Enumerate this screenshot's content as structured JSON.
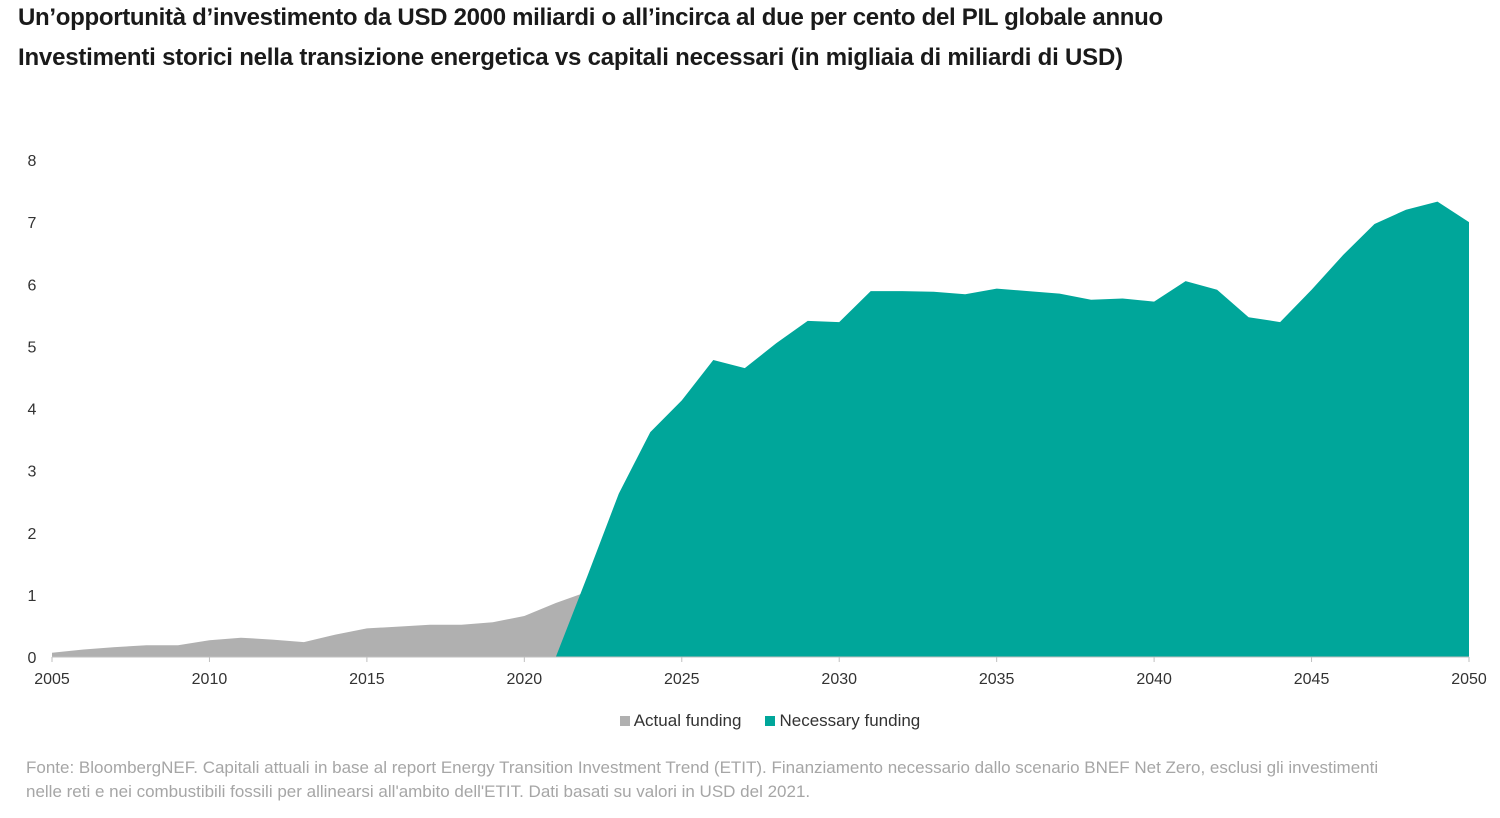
{
  "title": "Un’opportunità d’investimento da USD 2000 miliardi o all’incirca al due per cento del PIL globale annuo",
  "subtitle": "Investimenti storici nella transizione energetica vs capitali necessari (in migliaia di miliardi di USD)",
  "source": "Fonte: BloombergNEF. Capitali attuali in base al report Energy Transition Investment Trend (ETIT). Finanziamento necessario dallo scenario BNEF Net Zero, esclusi gli investimenti nelle reti e nei combustibili fossili per allinearsi all'ambito dell'ETIT. Dati basati su valori in USD del 2021.",
  "chart_data": {
    "type": "area",
    "xlim": [
      2005,
      2050
    ],
    "ylim": [
      0,
      8
    ],
    "grid": false,
    "legend": "bottom",
    "x_ticks": [
      "2005",
      "2010",
      "2015",
      "2020",
      "2025",
      "2030",
      "2035",
      "2040",
      "2045",
      "2050"
    ],
    "y_ticks": [
      "0",
      "1",
      "2",
      "3",
      "4",
      "5",
      "6",
      "7",
      "8"
    ],
    "series": [
      {
        "name": "Actual funding",
        "color": "#b0b0b0",
        "x": [
          2005,
          2006,
          2007,
          2008,
          2009,
          2010,
          2011,
          2012,
          2013,
          2014,
          2015,
          2016,
          2017,
          2018,
          2019,
          2020,
          2021,
          2022
        ],
        "values": [
          0.07,
          0.12,
          0.16,
          0.19,
          0.19,
          0.27,
          0.31,
          0.28,
          0.24,
          0.36,
          0.46,
          0.49,
          0.52,
          0.52,
          0.56,
          0.66,
          0.87,
          1.05
        ]
      },
      {
        "name": "Necessary funding",
        "color": "#00a69a",
        "x": [
          2021,
          2022,
          2023,
          2024,
          2025,
          2026,
          2027,
          2028,
          2029,
          2030,
          2031,
          2032,
          2033,
          2034,
          2035,
          2036,
          2037,
          2038,
          2039,
          2040,
          2041,
          2042,
          2043,
          2044,
          2045,
          2046,
          2047,
          2048,
          2049,
          2050
        ],
        "values": [
          0,
          1.3,
          2.63,
          3.62,
          4.13,
          4.78,
          4.65,
          5.05,
          5.41,
          5.39,
          5.89,
          5.89,
          5.88,
          5.84,
          5.93,
          5.89,
          5.85,
          5.75,
          5.77,
          5.72,
          6.05,
          5.91,
          5.47,
          5.39,
          5.91,
          6.47,
          6.97,
          7.2,
          7.33,
          7.0
        ]
      }
    ]
  }
}
